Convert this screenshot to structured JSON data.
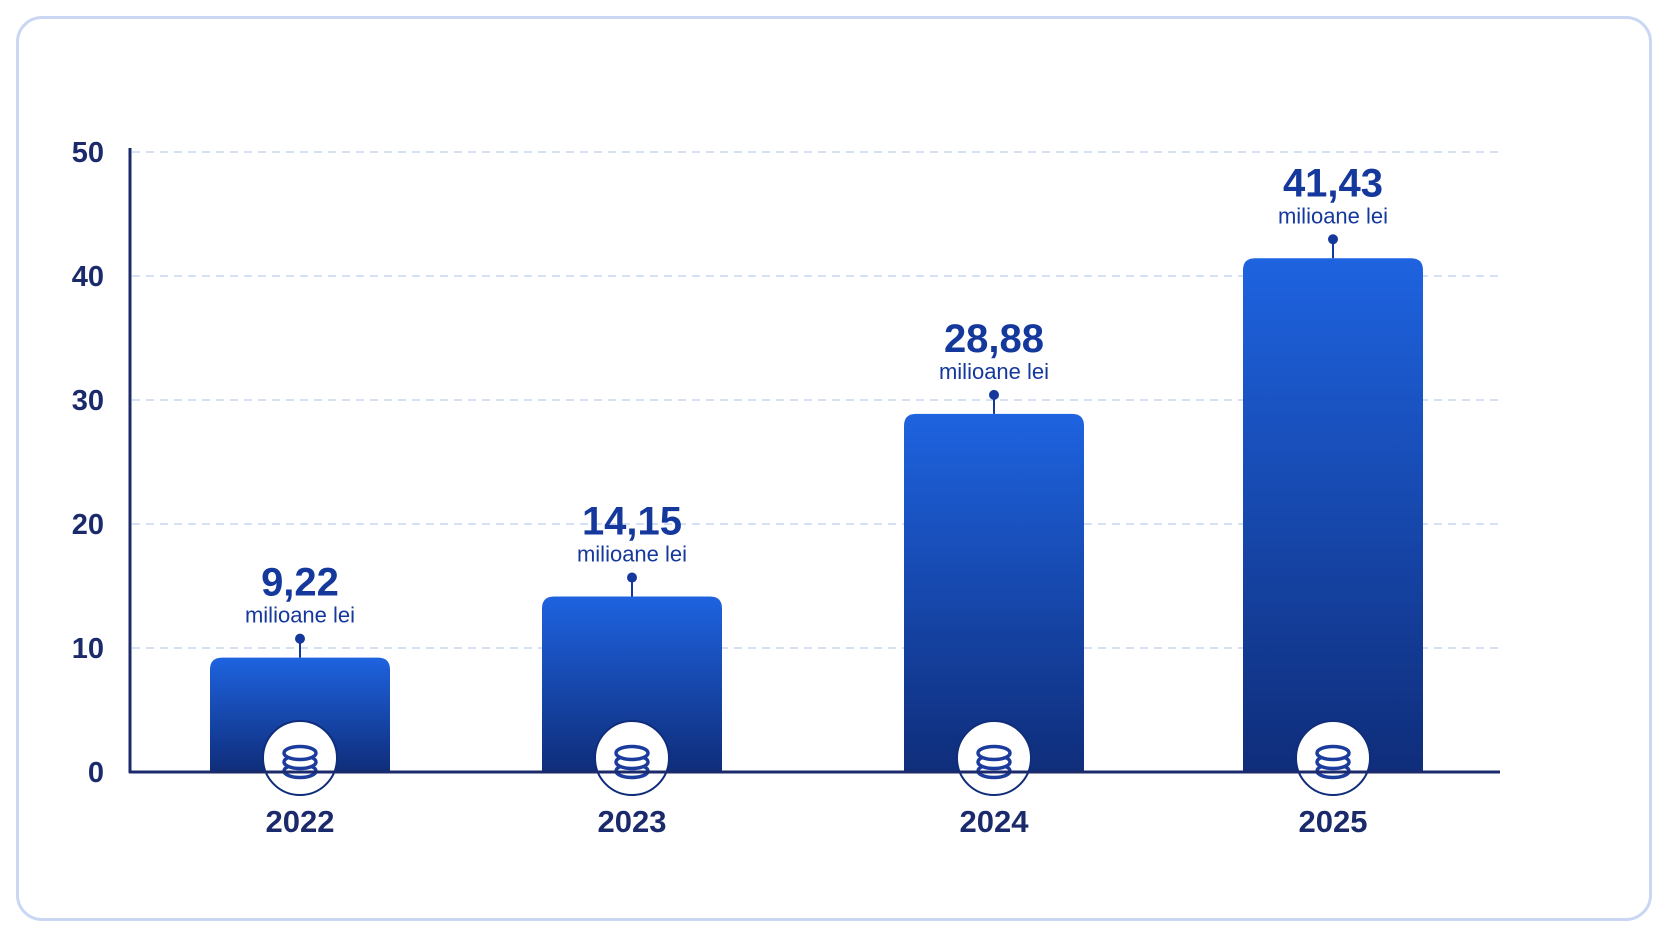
{
  "chart_data": {
    "type": "bar",
    "categories": [
      "2022",
      "2023",
      "2024",
      "2025"
    ],
    "values": [
      9.22,
      14.15,
      28.88,
      41.43
    ],
    "value_labels": [
      "9,22",
      "14,15",
      "28,88",
      "41,43"
    ],
    "unit_label": "milioane lei",
    "title": "",
    "xlabel": "",
    "ylabel": "",
    "ylim": [
      0,
      50
    ],
    "yticks": [
      "0",
      "10",
      "20",
      "30",
      "40",
      "50"
    ],
    "grid": true,
    "legend": "none",
    "bar_icon": "coin-stack-icon",
    "colors": {
      "bar_top": "#1e63e0",
      "bar_bottom": "#0f2d7a",
      "axis": "#1b2a6b",
      "grid": "#c8d6f2",
      "text": "#15389c",
      "frame": "#c9d7f4"
    }
  }
}
